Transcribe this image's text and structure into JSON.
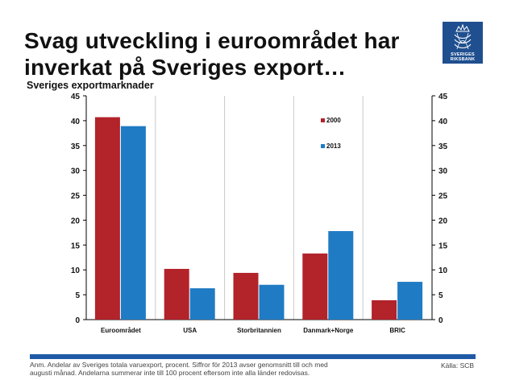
{
  "header": {
    "title": "Svag utveckling i euroområdet har inverkat på Sveriges export…",
    "subtitle": "Sveriges exportmarknader"
  },
  "logo": {
    "line1": "SVERIGES",
    "line2": "RIKSBANK"
  },
  "colors": {
    "series_2000": "#b2232a",
    "series_2013": "#1f7bc4",
    "footer_bar": "#1f5aa6",
    "logo_bg": "#1f4f8f"
  },
  "chart_data": {
    "type": "bar",
    "title": "Sveriges exportmarknader",
    "categories": [
      "Euroområdet",
      "USA",
      "Storbritannien",
      "Danmark+Norge",
      "BRIC"
    ],
    "series": [
      {
        "name": "2000",
        "values": [
          40.7,
          10.2,
          9.4,
          13.3,
          3.9
        ]
      },
      {
        "name": "2013",
        "values": [
          38.9,
          6.3,
          7.0,
          17.8,
          7.6
        ]
      }
    ],
    "ylim": [
      0,
      45
    ],
    "yticks": [
      0,
      5,
      10,
      15,
      20,
      25,
      30,
      35,
      40,
      45
    ],
    "left_axis_labels": [
      "0",
      "5",
      "10",
      "15",
      "20",
      "25",
      "30",
      "35",
      "40",
      "45"
    ],
    "right_axis_labels": [
      "0",
      "5",
      "10",
      "15",
      "20",
      "25",
      "30",
      "35",
      "40",
      "45"
    ],
    "xlabel": "",
    "ylabel": "",
    "legend_placement": "top-right",
    "gridlines": "vertical-category-separators"
  },
  "footer": {
    "note_line1": "Anm. Andelar av Sveriges totala varuexport, procent. Siffror för 2013 avser genomsnitt till och med",
    "note_line2": "augusti månad. Andelarna summerar inte till 100 procent eftersom inte alla länder redovisas.",
    "source": "Källa: SCB"
  }
}
